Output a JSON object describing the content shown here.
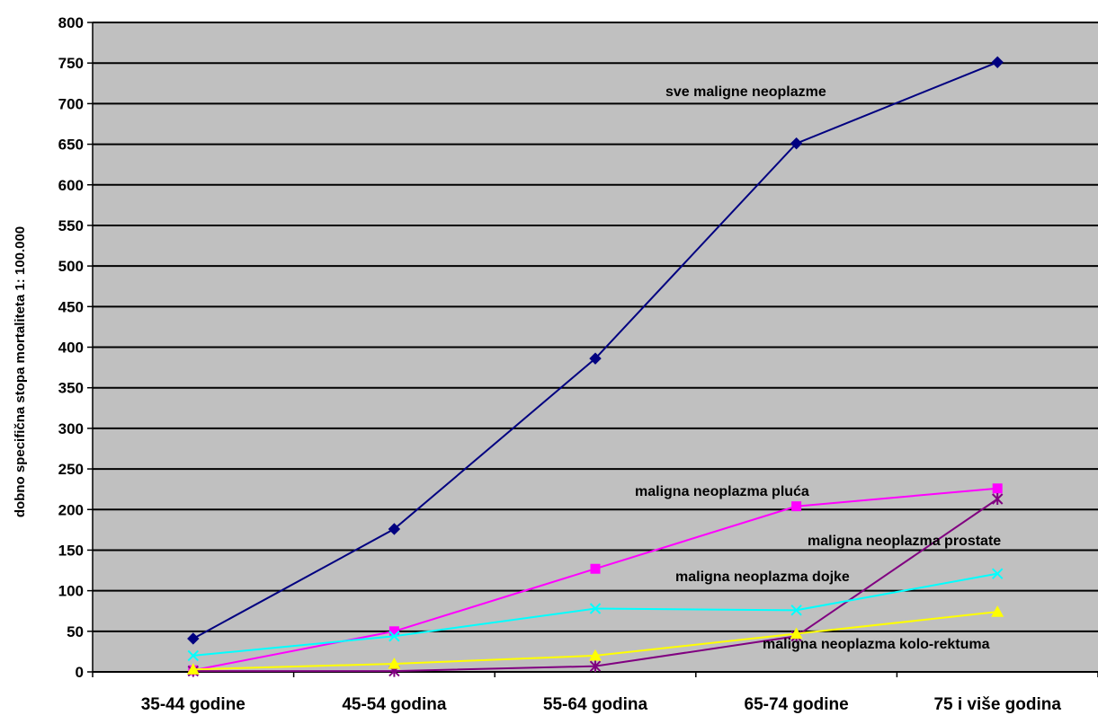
{
  "chart_data": {
    "type": "line",
    "categories": [
      "35-44 godine",
      "45-54 godina",
      "55-64 godina",
      "65-74 godine",
      "75 i više godina"
    ],
    "ylabel": "dobno specifična stopa mortaliteta 1: 100.000",
    "xlabel": "",
    "ylim": [
      0,
      800
    ],
    "yticks": [
      0,
      50,
      100,
      150,
      200,
      250,
      300,
      350,
      400,
      450,
      500,
      550,
      600,
      650,
      700,
      750,
      800
    ],
    "grid": true,
    "background": "#c0c0c0",
    "series": [
      {
        "name": "sve maligne neoplazme",
        "values": [
          41,
          176,
          386,
          651,
          751
        ],
        "color": "#000080",
        "marker": "diamond"
      },
      {
        "name": "maligna neoplazma pluća",
        "values": [
          2,
          50,
          127,
          204,
          226
        ],
        "color": "#ff00ff",
        "marker": "square"
      },
      {
        "name": "maligna neoplazma prostate",
        "values": [
          1,
          1,
          7,
          44,
          213
        ],
        "color": "#800080",
        "marker": "star"
      },
      {
        "name": "maligna neoplazma dojke",
        "values": [
          20,
          44,
          78,
          76,
          121
        ],
        "color": "#00ffff",
        "marker": "x"
      },
      {
        "name": "maligna neoplazma kolo-rektuma",
        "values": [
          3,
          10,
          20,
          47,
          74
        ],
        "color": "#ffff00",
        "marker": "triangle"
      }
    ]
  }
}
